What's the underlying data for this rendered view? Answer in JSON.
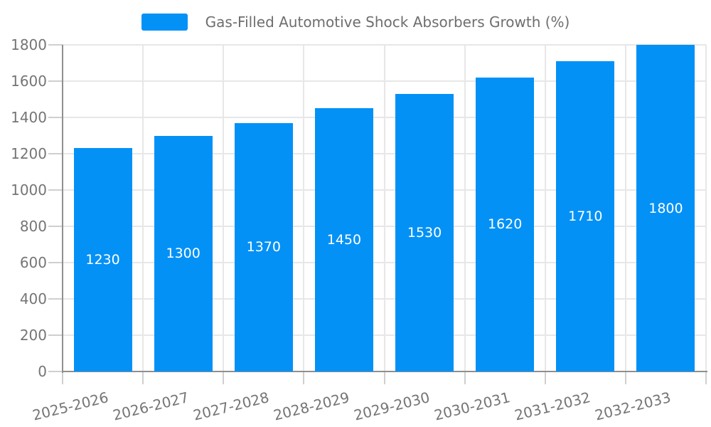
{
  "chart_data": {
    "type": "bar",
    "title": "Gas-Filled Automotive Shock Absorbers Growth (%)",
    "categories": [
      "2025-2026",
      "2026-2027",
      "2027-2028",
      "2028-2029",
      "2029-2030",
      "2030-2031",
      "2031-2032",
      "2032-2033"
    ],
    "series": [
      {
        "name": "Gas-Filled Automotive Shock Absorbers Growth (%)",
        "values": [
          1230,
          1300,
          1370,
          1450,
          1530,
          1620,
          1710,
          1800
        ]
      }
    ],
    "bar_value_labels": [
      "1230",
      "1300",
      "1370",
      "1450",
      "1530",
      "1620",
      "1710",
      "1800"
    ],
    "xlabel": "",
    "ylabel": "",
    "ylim": [
      0,
      1800
    ],
    "yticks": [
      0,
      200,
      400,
      600,
      800,
      1000,
      1200,
      1400,
      1600,
      1800
    ],
    "grid": true,
    "legend_position": "top-center",
    "xtick_label_rotation_deg": -14,
    "colors": {
      "bar": "#0391f6",
      "bar_value_label": "#ffffff",
      "axis_text": "#757575",
      "legend_text": "#6e6e6e",
      "grid_line": "#e7e7e7",
      "tick_line": "#cfcfcf",
      "axis_line": "#8f8f8f",
      "background": "#ffffff"
    }
  }
}
